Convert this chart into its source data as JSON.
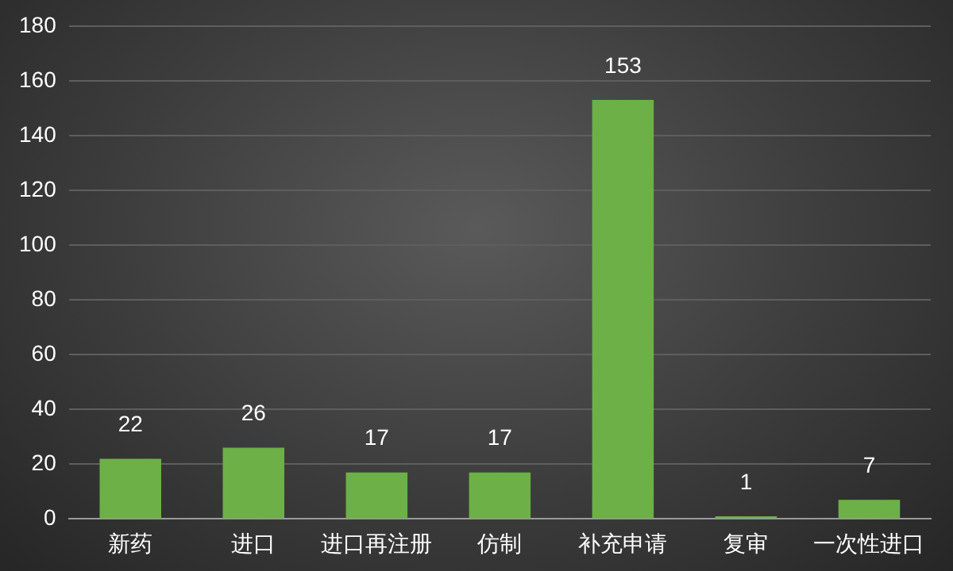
{
  "chart_data": {
    "type": "bar",
    "categories": [
      "新药",
      "进口",
      "进口再注册",
      "仿制",
      "补充申请",
      "复审",
      "一次性进口"
    ],
    "values": [
      22,
      26,
      17,
      17,
      153,
      1,
      7
    ],
    "color": "#6cb047",
    "ylim": [
      0,
      180
    ],
    "yticks": [
      0,
      20,
      40,
      60,
      80,
      100,
      120,
      140,
      160,
      180
    ],
    "grid": "y",
    "data_labels": true,
    "legend": false
  }
}
